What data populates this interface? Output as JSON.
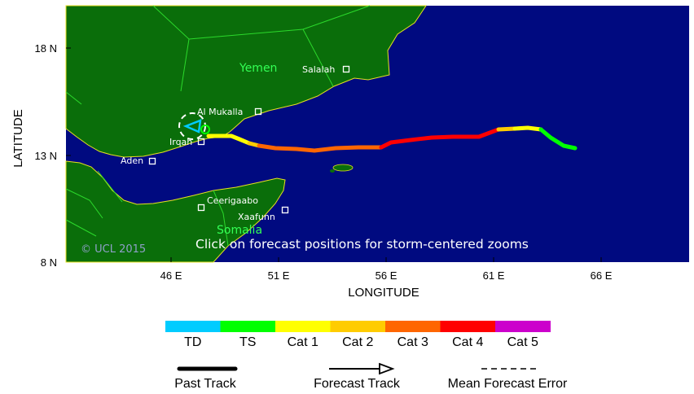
{
  "map": {
    "lat_ticks": [
      {
        "label": "18 N",
        "value": 18
      },
      {
        "label": "13 N",
        "value": 13
      },
      {
        "label": "8 N",
        "value": 8
      }
    ],
    "lon_ticks": [
      {
        "label": "46 E",
        "value": 46
      },
      {
        "label": "51 E",
        "value": 51
      },
      {
        "label": "56 E",
        "value": 56
      },
      {
        "label": "61 E",
        "value": 61
      },
      {
        "label": "66 E",
        "value": 66
      }
    ],
    "xlabel": "LONGITUDE",
    "ylabel": "LATITUDE",
    "cities": [
      {
        "name": "Salalah"
      },
      {
        "name": "Al Mukalla"
      },
      {
        "name": "Irqah"
      },
      {
        "name": "Aden"
      },
      {
        "name": "Ceerigaabo"
      },
      {
        "name": "Xaafunn"
      }
    ],
    "countries": [
      {
        "name": "Yemen"
      },
      {
        "name": "Somalia"
      }
    ],
    "overlay_text": "Click on forecast positions for storm-centered zooms",
    "copyright": "© UCL 2015",
    "colors": {
      "ocean": "#000a80",
      "land": "#0a6e0a",
      "border": "#2bd92b",
      "coast": "#e8e020"
    }
  },
  "legend": {
    "categories": [
      {
        "label": "TD",
        "color": "#00ccff"
      },
      {
        "label": "TS",
        "color": "#00ff00"
      },
      {
        "label": "Cat 1",
        "color": "#ffff00"
      },
      {
        "label": "Cat 2",
        "color": "#ffcc00"
      },
      {
        "label": "Cat 3",
        "color": "#ff6600"
      },
      {
        "label": "Cat 4",
        "color": "#ff0000"
      },
      {
        "label": "Cat 5",
        "color": "#cc00cc"
      }
    ],
    "past_track_label": "Past Track",
    "forecast_track_label": "Forecast Track",
    "mean_error_label": "Mean Forecast Error"
  }
}
